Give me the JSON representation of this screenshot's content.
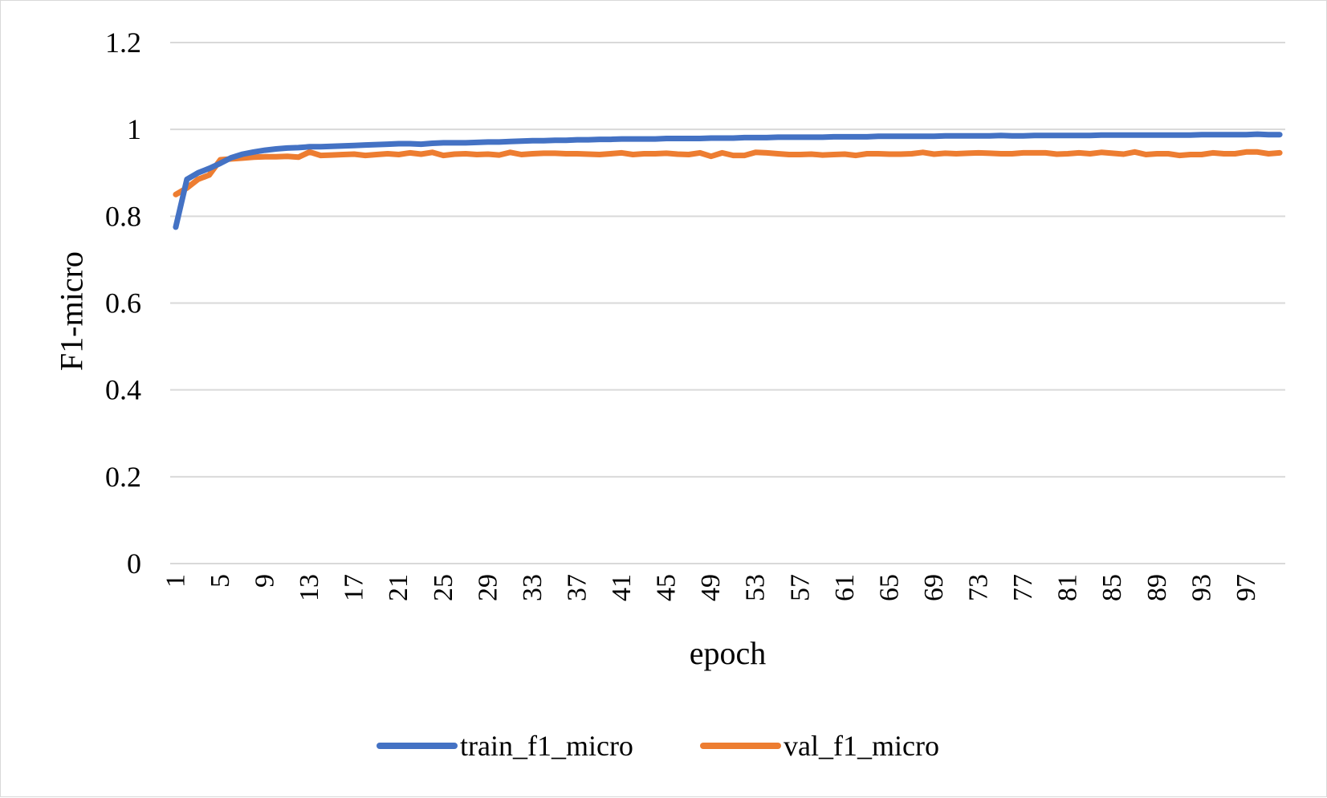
{
  "chart_data": {
    "type": "line",
    "title": "",
    "xlabel": "epoch",
    "ylabel": "F1-micro",
    "ylim": [
      0,
      1.2
    ],
    "yticks": [
      0,
      0.2,
      0.4,
      0.6,
      0.8,
      1,
      1.2
    ],
    "ytick_labels": [
      "0",
      "0.2",
      "0.4",
      "0.6",
      "0.8",
      "1",
      "1.2"
    ],
    "x_range": [
      1,
      100
    ],
    "xtick_labels": [
      "1",
      "5",
      "9",
      "13",
      "17",
      "21",
      "25",
      "29",
      "33",
      "37",
      "41",
      "45",
      "49",
      "53",
      "57",
      "61",
      "65",
      "69",
      "73",
      "77",
      "81",
      "85",
      "89",
      "93",
      "97"
    ],
    "grid": true,
    "legend_position": "bottom",
    "series": [
      {
        "name": "train_f1_micro",
        "color": "#4472C4",
        "values": [
          0.775,
          0.885,
          0.9,
          0.91,
          0.922,
          0.935,
          0.943,
          0.948,
          0.952,
          0.955,
          0.957,
          0.958,
          0.96,
          0.96,
          0.961,
          0.962,
          0.963,
          0.964,
          0.965,
          0.966,
          0.967,
          0.967,
          0.966,
          0.968,
          0.969,
          0.969,
          0.969,
          0.97,
          0.971,
          0.971,
          0.972,
          0.973,
          0.974,
          0.974,
          0.975,
          0.975,
          0.976,
          0.976,
          0.977,
          0.977,
          0.978,
          0.978,
          0.978,
          0.978,
          0.979,
          0.979,
          0.979,
          0.979,
          0.98,
          0.98,
          0.98,
          0.981,
          0.981,
          0.981,
          0.982,
          0.982,
          0.982,
          0.982,
          0.982,
          0.983,
          0.983,
          0.983,
          0.983,
          0.984,
          0.984,
          0.984,
          0.984,
          0.984,
          0.984,
          0.985,
          0.985,
          0.985,
          0.985,
          0.985,
          0.986,
          0.985,
          0.985,
          0.986,
          0.986,
          0.986,
          0.986,
          0.986,
          0.986,
          0.987,
          0.987,
          0.987,
          0.987,
          0.987,
          0.987,
          0.987,
          0.987,
          0.987,
          0.988,
          0.988,
          0.988,
          0.988,
          0.988,
          0.989,
          0.988,
          0.988
        ]
      },
      {
        "name": "val_f1_micro",
        "color": "#ED7D31",
        "values": [
          0.85,
          0.865,
          0.885,
          0.895,
          0.93,
          0.932,
          0.934,
          0.936,
          0.937,
          0.937,
          0.938,
          0.936,
          0.948,
          0.94,
          0.941,
          0.942,
          0.943,
          0.94,
          0.942,
          0.944,
          0.942,
          0.946,
          0.943,
          0.947,
          0.94,
          0.943,
          0.944,
          0.942,
          0.943,
          0.941,
          0.947,
          0.942,
          0.944,
          0.945,
          0.945,
          0.944,
          0.944,
          0.943,
          0.942,
          0.944,
          0.946,
          0.942,
          0.944,
          0.944,
          0.945,
          0.943,
          0.942,
          0.946,
          0.938,
          0.946,
          0.94,
          0.94,
          0.947,
          0.946,
          0.944,
          0.942,
          0.942,
          0.943,
          0.941,
          0.942,
          0.943,
          0.94,
          0.944,
          0.944,
          0.943,
          0.943,
          0.944,
          0.947,
          0.943,
          0.945,
          0.944,
          0.945,
          0.946,
          0.945,
          0.944,
          0.944,
          0.946,
          0.946,
          0.946,
          0.943,
          0.944,
          0.946,
          0.944,
          0.947,
          0.945,
          0.943,
          0.948,
          0.942,
          0.944,
          0.944,
          0.94,
          0.942,
          0.942,
          0.946,
          0.944,
          0.944,
          0.948,
          0.948,
          0.944,
          0.946
        ]
      }
    ]
  }
}
